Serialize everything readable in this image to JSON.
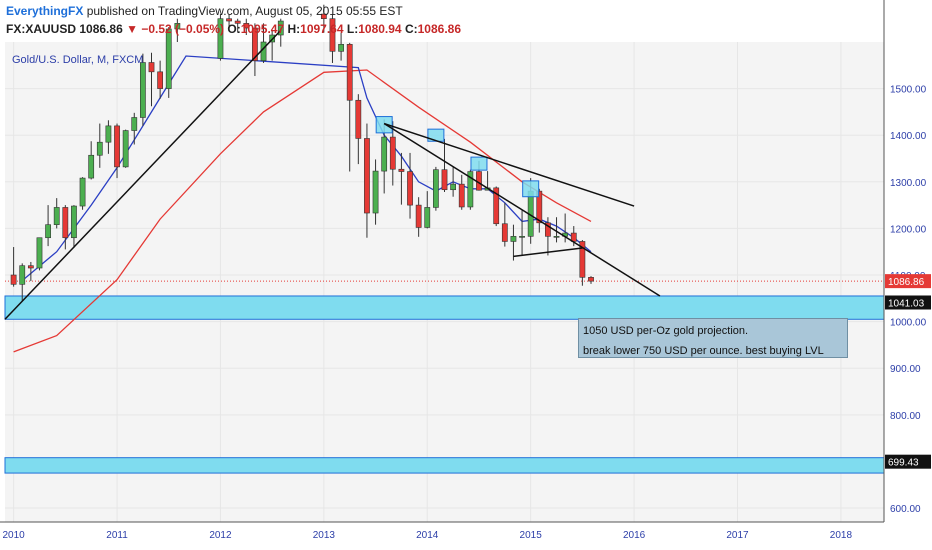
{
  "header": {
    "author": "EverythingFX",
    "published": " published on TradingView.com, August 05, 2015 05:55 EST",
    "symbol": "FX:XAUUSD",
    "last": "1086.86",
    "change": "−0.52 (−0.05%)",
    "open_label": "O:",
    "open": "1095.47",
    "high_label": "H:",
    "high": "1097.64",
    "low_label": "L:",
    "low": "1080.94",
    "close_label": "C:",
    "close": "1086.86"
  },
  "symbol_label": "Gold/U.S. Dollar, M, FXCM",
  "annotation": {
    "line1": "1050 USD per-Oz gold projection.",
    "line2": "break lower 750 USD per ounce. best buying LVL"
  },
  "colors": {
    "up": "#4caf50",
    "down": "#e53935",
    "ma_fast": "#2b3fc4",
    "ma_slow": "#e53935",
    "zone_fill": "#7fdcef",
    "zone_border": "#1e6fd9",
    "trendline": "#111111",
    "grid": "#e6e6e6",
    "axis_text": "#2c3ea8"
  },
  "chart_data": {
    "type": "candlestick",
    "title": "Gold/U.S. Dollar, M, FXCM",
    "x_ticks": [
      "2010",
      "2011",
      "2012",
      "2013",
      "2014",
      "2015",
      "2016",
      "2017",
      "2018"
    ],
    "y_ticks": [
      "1500.00",
      "1400.00",
      "1300.00",
      "1200.00",
      "1100.00",
      "1000.00",
      "900.00",
      "800.00",
      "700.00",
      "600.00"
    ],
    "ylim": [
      570,
      1600
    ],
    "xlim": [
      "2009-12",
      "2018-06"
    ],
    "price_labels": [
      "1086.86",
      "1041.03",
      "699.43"
    ],
    "zones": [
      {
        "low": 1005,
        "high": 1055
      },
      {
        "low": 675,
        "high": 708
      }
    ],
    "candles": [
      {
        "t": "2010-01",
        "o": 1100,
        "h": 1160,
        "l": 1075,
        "c": 1080
      },
      {
        "t": "2010-02",
        "o": 1080,
        "h": 1125,
        "l": 1045,
        "c": 1120
      },
      {
        "t": "2010-03",
        "o": 1120,
        "h": 1128,
        "l": 1087,
        "c": 1115
      },
      {
        "t": "2010-04",
        "o": 1115,
        "h": 1180,
        "l": 1110,
        "c": 1180
      },
      {
        "t": "2010-05",
        "o": 1180,
        "h": 1250,
        "l": 1162,
        "c": 1208
      },
      {
        "t": "2010-06",
        "o": 1208,
        "h": 1265,
        "l": 1200,
        "c": 1245
      },
      {
        "t": "2010-07",
        "o": 1245,
        "h": 1250,
        "l": 1155,
        "c": 1180
      },
      {
        "t": "2010-08",
        "o": 1180,
        "h": 1250,
        "l": 1158,
        "c": 1248
      },
      {
        "t": "2010-09",
        "o": 1248,
        "h": 1310,
        "l": 1240,
        "c": 1308
      },
      {
        "t": "2010-10",
        "o": 1308,
        "h": 1387,
        "l": 1305,
        "c": 1357
      },
      {
        "t": "2010-11",
        "o": 1357,
        "h": 1425,
        "l": 1330,
        "c": 1385
      },
      {
        "t": "2010-12",
        "o": 1385,
        "h": 1432,
        "l": 1360,
        "c": 1420
      },
      {
        "t": "2011-01",
        "o": 1420,
        "h": 1425,
        "l": 1308,
        "c": 1332
      },
      {
        "t": "2011-02",
        "o": 1332,
        "h": 1412,
        "l": 1330,
        "c": 1410
      },
      {
        "t": "2011-03",
        "o": 1410,
        "h": 1448,
        "l": 1380,
        "c": 1438
      },
      {
        "t": "2011-04",
        "o": 1438,
        "h": 1575,
        "l": 1420,
        "c": 1556
      },
      {
        "t": "2011-05",
        "o": 1556,
        "h": 1577,
        "l": 1462,
        "c": 1536
      },
      {
        "t": "2011-06",
        "o": 1536,
        "h": 1560,
        "l": 1478,
        "c": 1500
      },
      {
        "t": "2011-07",
        "o": 1500,
        "h": 1632,
        "l": 1480,
        "c": 1628
      },
      {
        "t": "2011-08",
        "o": 1628,
        "h": 1650,
        "l": 1600,
        "c": 1640
      },
      {
        "t": "2012-01",
        "o": 1565,
        "h": 1660,
        "l": 1560,
        "c": 1650
      },
      {
        "t": "2012-02",
        "o": 1650,
        "h": 1660,
        "l": 1630,
        "c": 1645
      },
      {
        "t": "2012-03",
        "o": 1645,
        "h": 1650,
        "l": 1620,
        "c": 1640
      },
      {
        "t": "2012-04",
        "o": 1640,
        "h": 1650,
        "l": 1615,
        "c": 1630
      },
      {
        "t": "2012-05",
        "o": 1630,
        "h": 1640,
        "l": 1527,
        "c": 1560
      },
      {
        "t": "2012-06",
        "o": 1560,
        "h": 1640,
        "l": 1555,
        "c": 1600
      },
      {
        "t": "2012-07",
        "o": 1600,
        "h": 1625,
        "l": 1560,
        "c": 1615
      },
      {
        "t": "2012-08",
        "o": 1615,
        "h": 1650,
        "l": 1590,
        "c": 1645
      },
      {
        "t": "2013-01",
        "o": 1660,
        "h": 1680,
        "l": 1620,
        "c": 1650
      },
      {
        "t": "2013-02",
        "o": 1650,
        "h": 1660,
        "l": 1555,
        "c": 1580
      },
      {
        "t": "2013-03",
        "o": 1580,
        "h": 1620,
        "l": 1560,
        "c": 1595
      },
      {
        "t": "2013-04",
        "o": 1595,
        "h": 1598,
        "l": 1322,
        "c": 1475
      },
      {
        "t": "2013-05",
        "o": 1475,
        "h": 1488,
        "l": 1338,
        "c": 1393
      },
      {
        "t": "2013-06",
        "o": 1393,
        "h": 1425,
        "l": 1180,
        "c": 1233
      },
      {
        "t": "2013-07",
        "o": 1233,
        "h": 1348,
        "l": 1208,
        "c": 1323
      },
      {
        "t": "2013-08",
        "o": 1323,
        "h": 1434,
        "l": 1275,
        "c": 1396
      },
      {
        "t": "2013-09",
        "o": 1396,
        "h": 1430,
        "l": 1292,
        "c": 1327
      },
      {
        "t": "2013-10",
        "o": 1327,
        "h": 1362,
        "l": 1251,
        "c": 1322
      },
      {
        "t": "2013-11",
        "o": 1322,
        "h": 1362,
        "l": 1221,
        "c": 1250
      },
      {
        "t": "2013-12",
        "o": 1250,
        "h": 1267,
        "l": 1182,
        "c": 1202
      },
      {
        "t": "2014-01",
        "o": 1202,
        "h": 1280,
        "l": 1200,
        "c": 1245
      },
      {
        "t": "2014-02",
        "o": 1245,
        "h": 1332,
        "l": 1238,
        "c": 1326
      },
      {
        "t": "2014-03",
        "o": 1326,
        "h": 1392,
        "l": 1278,
        "c": 1283
      },
      {
        "t": "2014-04",
        "o": 1283,
        "h": 1332,
        "l": 1268,
        "c": 1295
      },
      {
        "t": "2014-05",
        "o": 1295,
        "h": 1315,
        "l": 1240,
        "c": 1246
      },
      {
        "t": "2014-06",
        "o": 1246,
        "h": 1326,
        "l": 1240,
        "c": 1322
      },
      {
        "t": "2014-07",
        "o": 1322,
        "h": 1345,
        "l": 1281,
        "c": 1282
      },
      {
        "t": "2014-08",
        "o": 1282,
        "h": 1323,
        "l": 1283,
        "c": 1287
      },
      {
        "t": "2014-09",
        "o": 1287,
        "h": 1290,
        "l": 1205,
        "c": 1210
      },
      {
        "t": "2014-10",
        "o": 1210,
        "h": 1255,
        "l": 1161,
        "c": 1172
      },
      {
        "t": "2014-11",
        "o": 1172,
        "h": 1208,
        "l": 1131,
        "c": 1183
      },
      {
        "t": "2014-12",
        "o": 1183,
        "h": 1239,
        "l": 1142,
        "c": 1183
      },
      {
        "t": "2015-01",
        "o": 1183,
        "h": 1308,
        "l": 1167,
        "c": 1280
      },
      {
        "t": "2015-02",
        "o": 1280,
        "h": 1285,
        "l": 1191,
        "c": 1212
      },
      {
        "t": "2015-03",
        "o": 1212,
        "h": 1224,
        "l": 1142,
        "c": 1183
      },
      {
        "t": "2015-04",
        "o": 1183,
        "h": 1224,
        "l": 1170,
        "c": 1183
      },
      {
        "t": "2015-05",
        "o": 1183,
        "h": 1232,
        "l": 1170,
        "c": 1190
      },
      {
        "t": "2015-06",
        "o": 1190,
        "h": 1205,
        "l": 1162,
        "c": 1172
      },
      {
        "t": "2015-07",
        "o": 1172,
        "h": 1175,
        "l": 1077,
        "c": 1095
      },
      {
        "t": "2015-08",
        "o": 1095,
        "h": 1097.64,
        "l": 1080.94,
        "c": 1086.86
      }
    ],
    "ma_fast": [
      [
        "2010-02",
        1088
      ],
      [
        "2010-06",
        1150
      ],
      [
        "2010-10",
        1250
      ],
      [
        "2011-01",
        1330
      ],
      [
        "2011-04",
        1420
      ],
      [
        "2011-07",
        1510
      ],
      [
        "2011-09",
        1570
      ],
      [
        "2013-05",
        1545
      ],
      [
        "2013-06",
        1480
      ],
      [
        "2013-08",
        1400
      ],
      [
        "2013-10",
        1355
      ],
      [
        "2013-12",
        1300
      ],
      [
        "2014-02",
        1280
      ],
      [
        "2014-04",
        1300
      ],
      [
        "2014-06",
        1285
      ],
      [
        "2014-08",
        1285
      ],
      [
        "2014-10",
        1255
      ],
      [
        "2014-12",
        1215
      ],
      [
        "2015-02",
        1220
      ],
      [
        "2015-04",
        1205
      ],
      [
        "2015-06",
        1180
      ],
      [
        "2015-08",
        1150
      ]
    ],
    "ma_slow": [
      [
        "2010-01",
        935
      ],
      [
        "2010-06",
        970
      ],
      [
        "2011-01",
        1090
      ],
      [
        "2011-06",
        1220
      ],
      [
        "2012-01",
        1360
      ],
      [
        "2012-06",
        1450
      ],
      [
        "2013-01",
        1535
      ],
      [
        "2013-06",
        1540
      ],
      [
        "2013-12",
        1460
      ],
      [
        "2014-06",
        1385
      ],
      [
        "2014-12",
        1300
      ],
      [
        "2015-04",
        1255
      ],
      [
        "2015-08",
        1215
      ]
    ],
    "trendlines": [
      {
        "from": [
          "2009-12",
          1005
        ],
        "to": [
          "2012-08",
          1625
        ]
      },
      {
        "from": [
          "2013-08",
          1425
        ],
        "to": [
          "2016-04",
          1055
        ]
      },
      {
        "from": [
          "2013-08",
          1425
        ],
        "to": [
          "2016-01",
          1248
        ]
      },
      {
        "from": [
          "2014-11",
          1140
        ],
        "to": [
          "2015-07",
          1158
        ]
      }
    ],
    "marker_boxes": [
      {
        "t": "2013-08",
        "low": 1405,
        "high": 1440
      },
      {
        "t": "2014-02",
        "low": 1387,
        "high": 1413
      },
      {
        "t": "2014-07",
        "low": 1325,
        "high": 1353
      },
      {
        "t": "2015-01",
        "low": 1268,
        "high": 1302
      }
    ]
  }
}
